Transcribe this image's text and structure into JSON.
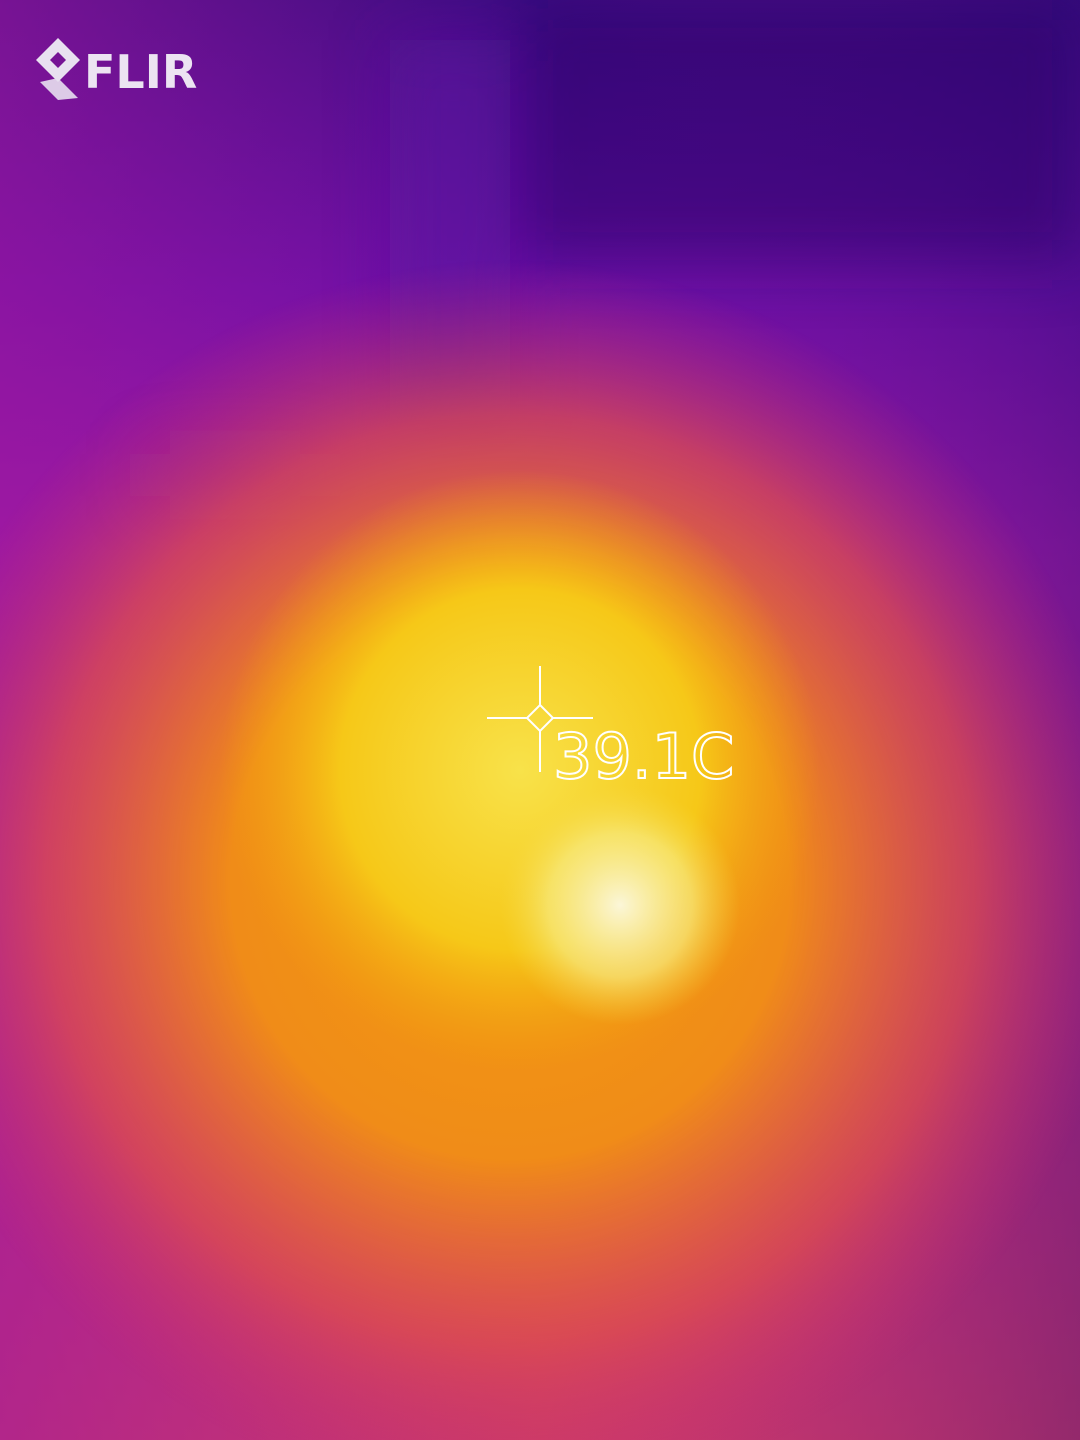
{
  "logo": {
    "text": "FLIR"
  },
  "spot": {
    "reading": "39.1C"
  }
}
